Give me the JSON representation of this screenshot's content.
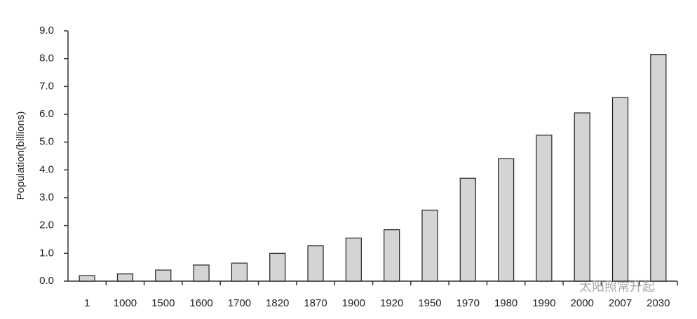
{
  "chart_data": {
    "type": "bar",
    "ylabel": "Population(billions)",
    "categories": [
      "1",
      "1000",
      "1500",
      "1600",
      "1700",
      "1820",
      "1870",
      "1900",
      "1920",
      "1950",
      "1970",
      "1980",
      "1990",
      "2000",
      "2007",
      "2030"
    ],
    "values": [
      0.2,
      0.26,
      0.4,
      0.58,
      0.65,
      1.0,
      1.27,
      1.55,
      1.85,
      2.55,
      3.7,
      4.4,
      5.25,
      6.05,
      6.6,
      8.15
    ],
    "color": "#d4d4d4",
    "ylim": [
      0,
      9
    ],
    "yticks": [
      {
        "value": 0,
        "label": "0.0"
      },
      {
        "value": 1,
        "label": "1.0"
      },
      {
        "value": 2,
        "label": "2.0"
      },
      {
        "value": 3,
        "label": "3.0"
      },
      {
        "value": 4,
        "label": "4.0"
      },
      {
        "value": 5,
        "label": "5.0"
      },
      {
        "value": 6,
        "label": "6.0"
      },
      {
        "value": 7,
        "label": "7.0"
      },
      {
        "value": 8,
        "label": "8.0"
      },
      {
        "value": 9,
        "label": "9.0"
      }
    ],
    "grid": false,
    "watermark": "太阳照常升起"
  }
}
